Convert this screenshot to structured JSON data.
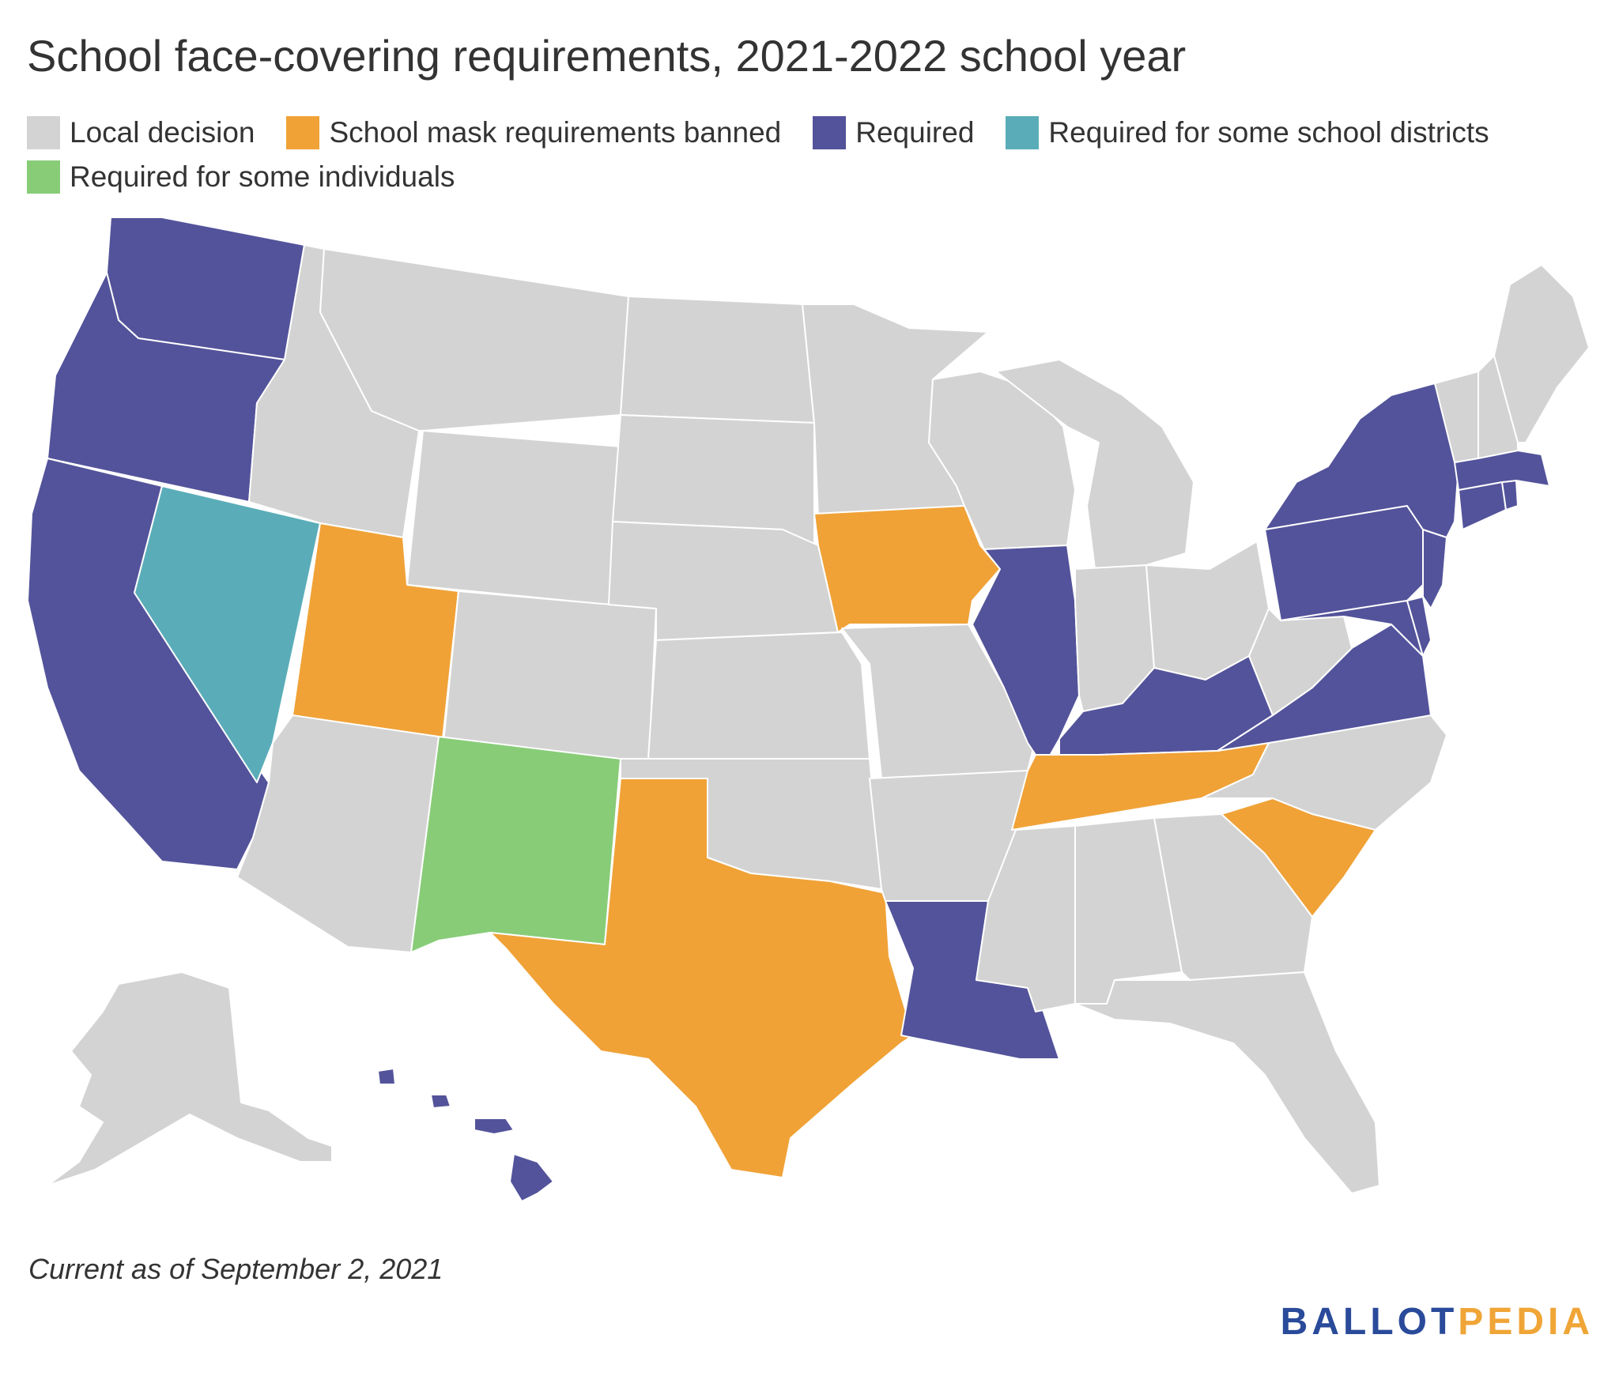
{
  "title": "School face-covering requirements, 2021-2022 school year",
  "legend": [
    {
      "label": "Local decision",
      "color": "#d3d3d3"
    },
    {
      "label": "School mask requirements banned",
      "color": "#f0a237"
    },
    {
      "label": "Required",
      "color": "#53539b"
    },
    {
      "label": "Required for some school districts",
      "color": "#5aadb8"
    },
    {
      "label": "Required for some individuals",
      "color": "#88cc78"
    }
  ],
  "states": {
    "local": [
      "Alaska",
      "Arizona",
      "Idaho",
      "Montana",
      "Wyoming",
      "Colorado",
      "North Dakota",
      "South Dakota",
      "Nebraska",
      "Kansas",
      "Oklahoma",
      "Minnesota",
      "Wisconsin",
      "Michigan",
      "Missouri",
      "Arkansas",
      "Mississippi",
      "Alabama",
      "Georgia",
      "Florida",
      "Indiana",
      "Ohio",
      "West Virginia",
      "North Carolina",
      "Vermont",
      "New Hampshire",
      "Maine"
    ],
    "banned": [
      "Utah",
      "Texas",
      "Iowa",
      "Tennessee",
      "South Carolina"
    ],
    "required": [
      "Washington",
      "Oregon",
      "California",
      "Hawaii",
      "Illinois",
      "Louisiana",
      "Kentucky",
      "Virginia",
      "Pennsylvania",
      "New York",
      "New Jersey",
      "Delaware",
      "Maryland",
      "Connecticut",
      "Rhode Island",
      "Massachusetts"
    ],
    "some_districts": [
      "Nevada"
    ],
    "some_individuals": [
      "New Mexico"
    ]
  },
  "footnote": "Current as of September 2, 2021",
  "logo": {
    "part1": "BALLOT",
    "part2": "PEDIA"
  }
}
